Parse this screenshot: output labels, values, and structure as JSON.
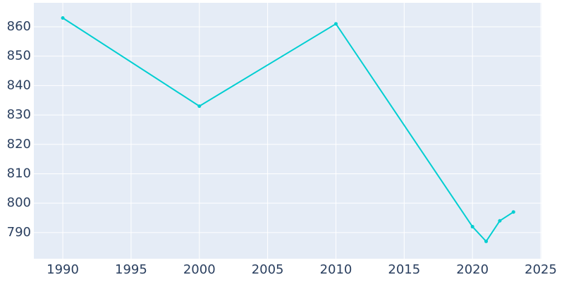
{
  "chart_data": {
    "type": "line",
    "x": [
      1990,
      2000,
      2010,
      2020,
      2021,
      2022,
      2023
    ],
    "series": [
      {
        "color": "#00ced1",
        "values": [
          863,
          833,
          861,
          792,
          787,
          794,
          797
        ]
      }
    ],
    "xlim": [
      1987.88,
      2025.05
    ],
    "xticks": [
      1990,
      1995,
      2000,
      2005,
      2010,
      2015,
      2020,
      2025
    ],
    "ylim": [
      781.1,
      868.15
    ],
    "yticks": [
      790,
      800,
      810,
      820,
      830,
      840,
      850,
      860
    ],
    "grid": true
  }
}
